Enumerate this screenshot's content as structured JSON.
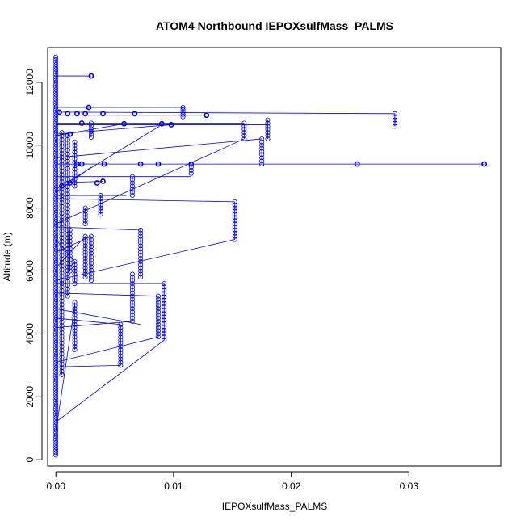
{
  "chart_data": {
    "type": "scatter",
    "title": "ATOM4 Northbound IEPOXsulfMass_PALMS",
    "xlabel": "IEPOXsulfMass_PALMS",
    "ylabel": "Altitude (m)",
    "xlim": [
      -0.0007,
      0.0378
    ],
    "ylim": [
      -200,
      13100
    ],
    "x_ticks": [
      0,
      0.01,
      0.02,
      0.03
    ],
    "x_tick_labels": [
      "0.00",
      "0.01",
      "0.02",
      "0.03"
    ],
    "y_ticks": [
      0,
      2000,
      4000,
      6000,
      8000,
      10000,
      12000
    ],
    "y_tick_labels": [
      "0",
      "2000",
      "4000",
      "6000",
      "8000",
      "10000",
      "12000"
    ],
    "grid": false,
    "series": [
      {
        "color": "#0000ff",
        "marker": "open-circle",
        "connected": true,
        "segments": [
          {
            "x": 0,
            "y_from": 150,
            "y_to": 12800,
            "n": 160
          },
          {
            "x": 0.0005,
            "y_from": 2700,
            "y_to": 10400,
            "n": 70
          },
          {
            "x": 0.001,
            "y_from": 5200,
            "y_to": 10300,
            "n": 45
          },
          {
            "x": 0.0012,
            "y_from": 6000,
            "y_to": 7300,
            "n": 12
          },
          {
            "x": 0.0016,
            "y_from": 3500,
            "y_to": 5000,
            "n": 16
          },
          {
            "x": 0.0016,
            "y_from": 5600,
            "y_to": 6300,
            "n": 8
          },
          {
            "x": 0.0016,
            "y_from": 8700,
            "y_to": 10100,
            "n": 14
          },
          {
            "x": 0.0025,
            "y_from": 5800,
            "y_to": 7100,
            "n": 14
          },
          {
            "x": 0.0025,
            "y_from": 7500,
            "y_to": 8000,
            "n": 6
          },
          {
            "x": 0.003,
            "y_from": 5700,
            "y_to": 7100,
            "n": 14
          },
          {
            "x": 0.003,
            "y_from": 10250,
            "y_to": 10700,
            "n": 6
          },
          {
            "x": 0.0038,
            "y_from": 7800,
            "y_to": 8400,
            "n": 7
          },
          {
            "x": 0.0055,
            "y_from": 3000,
            "y_to": 4300,
            "n": 14
          },
          {
            "x": 0.0065,
            "y_from": 4400,
            "y_to": 5900,
            "n": 16
          },
          {
            "x": 0.0065,
            "y_from": 8400,
            "y_to": 9000,
            "n": 7
          },
          {
            "x": 0.0072,
            "y_from": 5800,
            "y_to": 7300,
            "n": 16
          },
          {
            "x": 0.0087,
            "y_from": 3900,
            "y_to": 5200,
            "n": 14
          },
          {
            "x": 0.0092,
            "y_from": 3800,
            "y_to": 5600,
            "n": 18
          },
          {
            "x": 0.0108,
            "y_from": 10900,
            "y_to": 11200,
            "n": 5
          },
          {
            "x": 0.0115,
            "y_from": 9100,
            "y_to": 9400,
            "n": 4
          },
          {
            "x": 0.0152,
            "y_from": 7000,
            "y_to": 8200,
            "n": 13
          },
          {
            "x": 0.016,
            "y_from": 10200,
            "y_to": 10700,
            "n": 6
          },
          {
            "x": 0.0175,
            "y_from": 9400,
            "y_to": 10200,
            "n": 9
          },
          {
            "x": 0.018,
            "y_from": 10200,
            "y_to": 10800,
            "n": 7
          },
          {
            "x": 0.0288,
            "y_from": 10600,
            "y_to": 11000,
            "n": 5
          }
        ],
        "points": [
          [
            0.003,
            12200
          ],
          [
            0.0003,
            11050
          ],
          [
            0.001,
            11000
          ],
          [
            0.0018,
            11000
          ],
          [
            0.0025,
            11000
          ],
          [
            0.0028,
            11200
          ],
          [
            0.004,
            11000
          ],
          [
            0.0067,
            11000
          ],
          [
            0.0128,
            10950
          ],
          [
            0.0058,
            10680
          ],
          [
            0.009,
            10680
          ],
          [
            0.0098,
            10650
          ],
          [
            0.0022,
            10700
          ],
          [
            0.0012,
            10350
          ],
          [
            0.0018,
            9400
          ],
          [
            0.0022,
            9400
          ],
          [
            0.0041,
            9400
          ],
          [
            0.0072,
            9400
          ],
          [
            0.0087,
            9400
          ],
          [
            0.0115,
            9400
          ],
          [
            0.0256,
            9400
          ],
          [
            0.0364,
            9400
          ],
          [
            0.004,
            8850
          ],
          [
            0.0035,
            8800
          ],
          [
            0.0012,
            8800
          ],
          [
            0.0005,
            8700
          ]
        ],
        "connectors": [
          [
            [
              0,
              12200
            ],
            [
              0.003,
              12200
            ]
          ],
          [
            [
              0,
              11200
            ],
            [
              0.0108,
              11200
            ]
          ],
          [
            [
              0,
              11050
            ],
            [
              0.0288,
              11000
            ]
          ],
          [
            [
              0,
              10950
            ],
            [
              0.0128,
              10950
            ]
          ],
          [
            [
              0,
              10700
            ],
            [
              0.016,
              10700
            ]
          ],
          [
            [
              0,
              10650
            ],
            [
              0.018,
              10650
            ]
          ],
          [
            [
              0,
              10350
            ],
            [
              0.0098,
              10650
            ]
          ],
          [
            [
              0,
              10300
            ],
            [
              0.0058,
              10680
            ]
          ],
          [
            [
              0,
              9400
            ],
            [
              0.0364,
              9400
            ]
          ],
          [
            [
              0,
              9000
            ],
            [
              0.0115,
              9000
            ]
          ],
          [
            [
              0,
              8800
            ],
            [
              0.004,
              8850
            ]
          ],
          [
            [
              0,
              8600
            ],
            [
              0.0088,
              10600
            ]
          ],
          [
            [
              0,
              8500
            ],
            [
              0.003,
              9300
            ]
          ],
          [
            [
              0,
              8400
            ],
            [
              0.006,
              8400
            ]
          ],
          [
            [
              0,
              8300
            ],
            [
              0.0152,
              8200
            ]
          ],
          [
            [
              0,
              7500
            ],
            [
              0.016,
              10200
            ]
          ],
          [
            [
              0,
              7400
            ],
            [
              0.0072,
              7300
            ]
          ],
          [
            [
              0,
              5700
            ],
            [
              0.0152,
              7000
            ]
          ],
          [
            [
              0,
              5600
            ],
            [
              0.0092,
              5600
            ]
          ],
          [
            [
              0,
              5300
            ],
            [
              0.0087,
              5200
            ]
          ],
          [
            [
              0,
              4800
            ],
            [
              0.0072,
              4300
            ]
          ],
          [
            [
              0,
              4500
            ],
            [
              0.0055,
              4300
            ]
          ],
          [
            [
              0,
              4200
            ],
            [
              0.0065,
              4400
            ]
          ],
          [
            [
              0,
              3100
            ],
            [
              0.0087,
              3900
            ]
          ],
          [
            [
              0,
              2950
            ],
            [
              0.0055,
              3000
            ]
          ],
          [
            [
              0,
              1200
            ],
            [
              0.0092,
              3800
            ]
          ],
          [
            [
              0,
              900
            ],
            [
              0.0016,
              4900
            ]
          ],
          [
            [
              0,
              6100
            ],
            [
              0.0025,
              7100
            ]
          ],
          [
            [
              0,
              6600
            ],
            [
              0.003,
              7100
            ]
          ],
          [
            [
              0,
              7000
            ],
            [
              0.0016,
              6300
            ]
          ],
          [
            [
              0,
              9600
            ],
            [
              0.0175,
              10200
            ]
          ]
        ]
      }
    ]
  }
}
